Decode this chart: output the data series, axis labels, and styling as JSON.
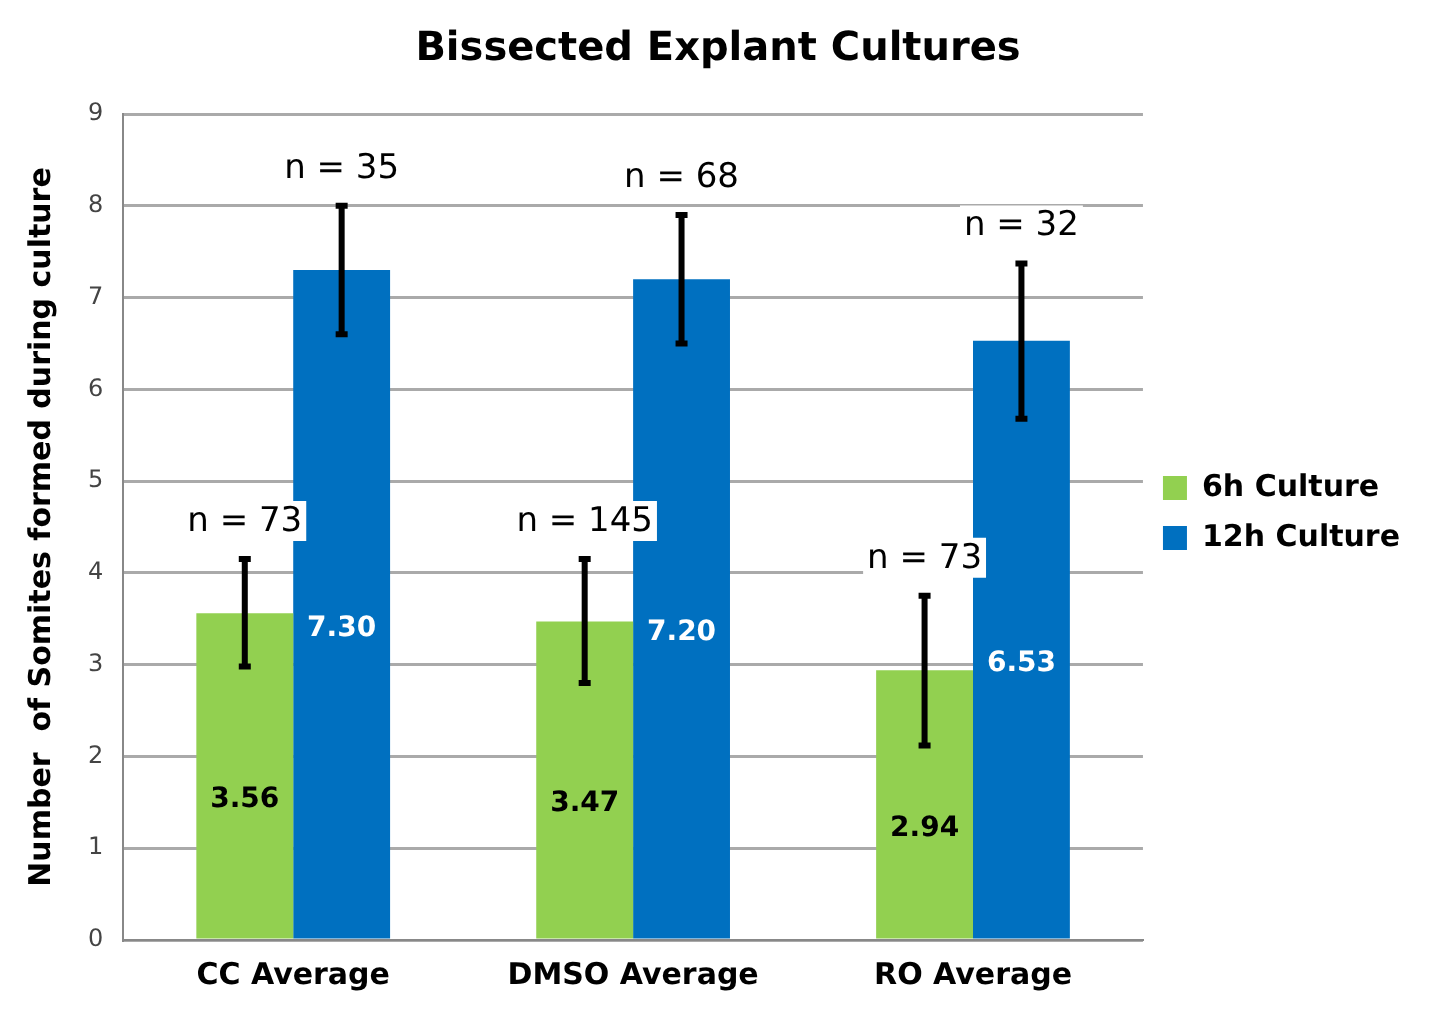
{
  "chart_data": {
    "type": "bar",
    "title": "Bissected Explant Cultures",
    "ylabel": "Number  of Somites formed during culture",
    "categories": [
      "CC Average",
      "DMSO Average",
      "RO Average"
    ],
    "series": [
      {
        "name": "6h Culture",
        "color": "#92d050",
        "values": [
          3.56,
          3.47,
          2.94
        ],
        "value_labels": [
          "3.56",
          "3.47",
          "2.94"
        ],
        "errors": [
          [
            2.98,
            4.15
          ],
          [
            2.8,
            4.15
          ],
          [
            2.12,
            3.75
          ]
        ]
      },
      {
        "name": "12h Culture",
        "color": "#0070c0",
        "values": [
          7.3,
          7.2,
          6.53
        ],
        "value_labels": [
          "7.30",
          "7.20",
          "6.53"
        ],
        "errors": [
          [
            6.6,
            8.0
          ],
          [
            6.5,
            7.9
          ],
          [
            5.68,
            7.37
          ]
        ]
      }
    ],
    "annotations": [
      {
        "text": "n = 73",
        "x": "CC Average",
        "y": 3.56
      },
      {
        "text": "n = 35",
        "x": "CC Average",
        "y": 7.3
      },
      {
        "text": "n = 145",
        "x": "DMSO Average",
        "y": 3.47
      },
      {
        "text": "n = 68",
        "x": "DMSO Average",
        "y": 7.2
      },
      {
        "text": "n = 73",
        "x": "RO Average",
        "y": 2.94
      },
      {
        "text": "n = 32",
        "x": "RO Average",
        "y": 6.53
      }
    ],
    "ylim": [
      0,
      9
    ],
    "yticks": [
      0,
      1,
      2,
      3,
      4,
      5,
      6,
      7,
      8,
      9
    ],
    "grid": "y",
    "legend": "right"
  }
}
